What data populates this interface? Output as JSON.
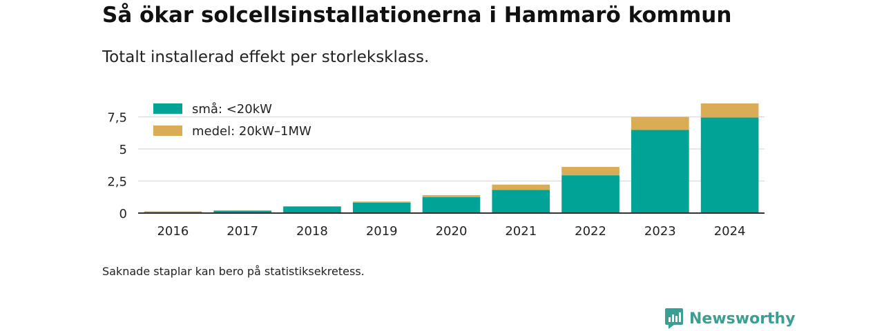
{
  "title": "Så ökar solcellsinstallationerna i Hammarö kommun",
  "subtitle": "Totalt installerad effekt per storleksklass.",
  "footnote": "Saknade staplar kan bero på statistiksekretess.",
  "brand": {
    "name": "Newsworthy"
  },
  "colors": {
    "small": "#00a396",
    "medium": "#daac56",
    "brand": "#3a9e93"
  },
  "chart_data": {
    "type": "bar",
    "stacked": true,
    "categories": [
      "2016",
      "2017",
      "2018",
      "2019",
      "2020",
      "2021",
      "2022",
      "2023",
      "2024"
    ],
    "series": [
      {
        "name": "små: <20kW",
        "values": [
          0.08,
          0.18,
          0.52,
          0.82,
          1.25,
          1.8,
          2.95,
          6.48,
          7.45
        ]
      },
      {
        "name": "medel: 20kW–1MW",
        "values": [
          0.05,
          0.04,
          0.0,
          0.08,
          0.15,
          0.42,
          0.65,
          1.02,
          1.1
        ]
      }
    ],
    "yticks": [
      0,
      2.5,
      5,
      7.5
    ],
    "ytick_labels": [
      "0",
      "2,5",
      "5",
      "7,5"
    ],
    "ylim": [
      0,
      8.55
    ],
    "grid": true,
    "legend": "top-left"
  }
}
